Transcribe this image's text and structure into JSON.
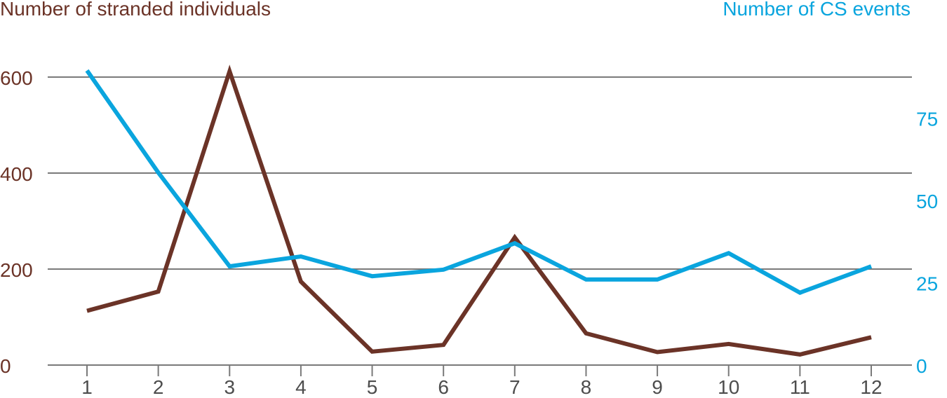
{
  "chart_data": {
    "type": "line",
    "x": [
      1,
      2,
      3,
      4,
      5,
      6,
      7,
      8,
      9,
      10,
      11,
      12
    ],
    "x_ticks": [
      "1",
      "2",
      "3",
      "4",
      "5",
      "6",
      "7",
      "8",
      "9",
      "10",
      "11",
      "12"
    ],
    "y_left": {
      "label": "Number of stranded individuals",
      "ticks": [
        "0",
        "200",
        "400",
        "600"
      ],
      "tick_values": [
        0,
        200,
        400,
        600
      ],
      "range": [
        0,
        600
      ]
    },
    "y_right": {
      "label": "Number of CS events",
      "ticks": [
        "0",
        "25",
        "50",
        "75"
      ],
      "tick_values": [
        0,
        25,
        50,
        75
      ],
      "range": [
        0,
        87.5
      ]
    },
    "series": [
      {
        "name": "Number of stranded individuals",
        "axis": "left",
        "color": "#6b3327",
        "values": [
          113,
          153,
          612,
          174,
          28,
          42,
          266,
          66,
          27,
          44,
          22,
          58
        ]
      },
      {
        "name": "Number of CS events",
        "axis": "right",
        "color": "#0aa5de",
        "values": [
          89.5,
          58.5,
          30,
          33,
          27,
          29,
          37,
          26,
          26,
          34,
          22,
          30
        ]
      }
    ],
    "grid": "horizontal",
    "legend": "none"
  }
}
